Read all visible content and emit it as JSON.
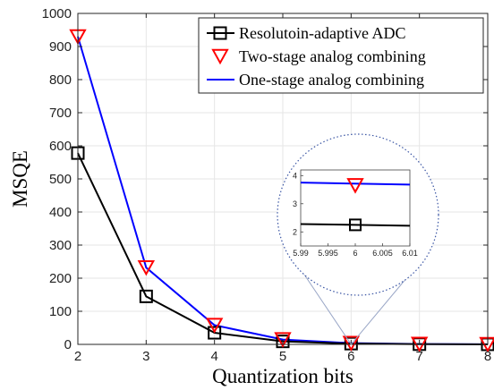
{
  "chart_data": {
    "type": "line",
    "xlabel": "Quantization bits",
    "ylabel": "MSQE",
    "xlim": [
      2,
      8
    ],
    "ylim": [
      0,
      1000
    ],
    "x_ticks": [
      "2",
      "3",
      "4",
      "5",
      "6",
      "7",
      "8"
    ],
    "y_ticks": [
      "0",
      "100",
      "200",
      "300",
      "400",
      "500",
      "600",
      "700",
      "800",
      "900",
      "1000"
    ],
    "grid": true,
    "legend_position": "top-right",
    "x": [
      2,
      3,
      4,
      5,
      6,
      7,
      8
    ],
    "series": [
      {
        "name": "Resolutoin-adaptive ADC",
        "marker": "square",
        "line": true,
        "color": "#000000",
        "values": [
          578,
          145,
          35,
          9,
          2.3,
          0.6,
          0.15
        ]
      },
      {
        "name": "Two-stage analog combining",
        "marker": "triangle-down",
        "line": false,
        "color": "#ff0000",
        "values": [
          930,
          232,
          58,
          14.5,
          3.65,
          0.9,
          0.23
        ]
      },
      {
        "name": "One-stage analog combining",
        "marker": "none",
        "line": true,
        "color": "#0000ff",
        "values": [
          930,
          232,
          58,
          14.5,
          3.65,
          0.9,
          0.23
        ]
      }
    ],
    "inset": {
      "xlim": [
        5.99,
        6.01
      ],
      "ylim": [
        1.5,
        4.2
      ],
      "x_ticks": [
        "5.99",
        "5.995",
        "6",
        "6.005",
        "6.01"
      ],
      "y_ticks": [
        "2",
        "3",
        "4"
      ],
      "zoom_point_x": 6,
      "one_stage_line": {
        "x": [
          5.99,
          6.01
        ],
        "y": [
          3.75,
          3.68
        ]
      },
      "adc_line": {
        "x": [
          5.99,
          6.01
        ],
        "y": [
          2.28,
          2.22
        ]
      },
      "two_stage_point": {
        "x": 6,
        "y": 3.65
      },
      "adc_point": {
        "x": 6,
        "y": 2.25
      }
    }
  }
}
